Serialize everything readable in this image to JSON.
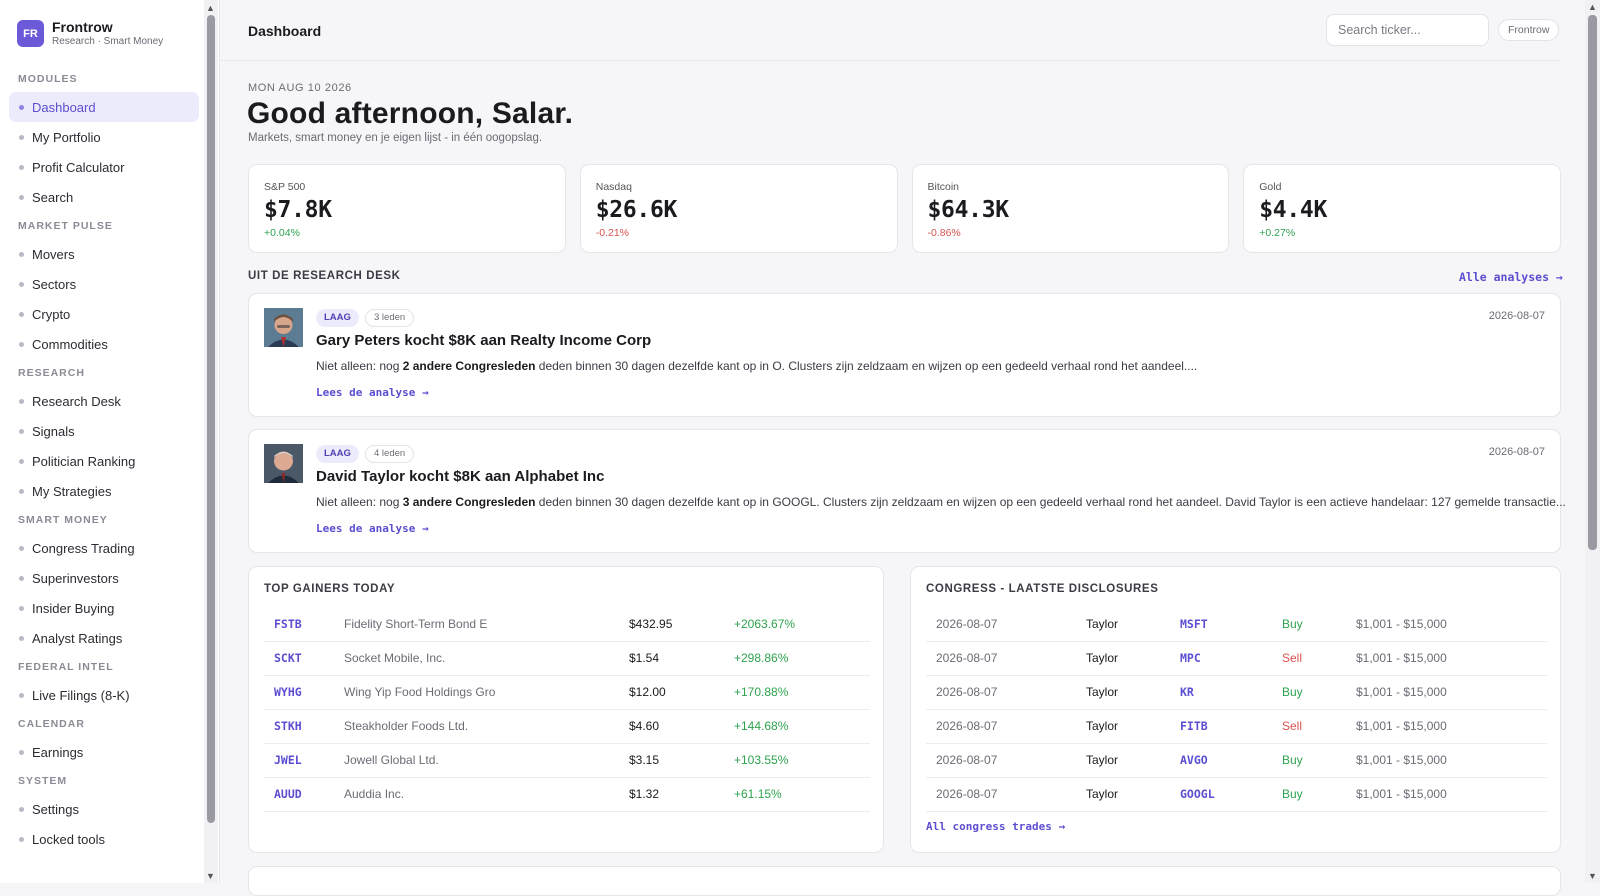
{
  "brand": {
    "logo": "FR",
    "name": "Frontrow",
    "sub": "Research · Smart Money"
  },
  "sidebar": {
    "sections": [
      {
        "title": "MODULES",
        "items": [
          "Dashboard",
          "My Portfolio",
          "Profit Calculator",
          "Search"
        ]
      },
      {
        "title": "MARKET PULSE",
        "items": [
          "Movers",
          "Sectors",
          "Crypto",
          "Commodities"
        ]
      },
      {
        "title": "RESEARCH",
        "items": [
          "Research Desk",
          "Signals",
          "Politician Ranking",
          "My Strategies"
        ]
      },
      {
        "title": "SMART MONEY",
        "items": [
          "Congress Trading",
          "Superinvestors",
          "Insider Buying",
          "Analyst Ratings"
        ]
      },
      {
        "title": "FEDERAL INTEL",
        "items": [
          "Live Filings (8-K)"
        ]
      },
      {
        "title": "CALENDAR",
        "items": [
          "Earnings"
        ]
      },
      {
        "title": "SYSTEM",
        "items": [
          "Settings",
          "Locked tools"
        ]
      }
    ],
    "active": "Dashboard"
  },
  "header": {
    "title": "Dashboard",
    "search_placeholder": "Search ticker...",
    "pill": "Frontrow"
  },
  "hero": {
    "date": "MON AUG 10 2026",
    "greeting": "Good afternoon, Salar.",
    "subtitle": "Markets, smart money en je eigen lijst - in één oogopslag."
  },
  "markets": [
    {
      "label": "S&P 500",
      "value": "$7.8K",
      "change": "+0.04%",
      "dir": "pos"
    },
    {
      "label": "Nasdaq",
      "value": "$26.6K",
      "change": "-0.21%",
      "dir": "neg"
    },
    {
      "label": "Bitcoin",
      "value": "$64.3K",
      "change": "-0.86%",
      "dir": "neg"
    },
    {
      "label": "Gold",
      "value": "$4.4K",
      "change": "+0.27%",
      "dir": "pos"
    }
  ],
  "research": {
    "heading": "UIT DE RESEARCH DESK",
    "all_link": "Alle analyses →",
    "articles": [
      {
        "level": "LAAG",
        "members": "3 leden",
        "date": "2026-08-07",
        "title": "Gary Peters kocht $8K aan Realty Income Corp",
        "body_pre": "Niet alleen: nog ",
        "body_bold": "2 andere Congresleden",
        "body_post": " deden binnen 30 dagen dezelfde kant op in O. Clusters zijn zeldzaam en wijzen op een gedeeld verhaal rond het aandeel....",
        "link": "Lees de analyse →"
      },
      {
        "level": "LAAG",
        "members": "4 leden",
        "date": "2026-08-07",
        "title": "David Taylor kocht $8K aan Alphabet Inc",
        "body_pre": "Niet alleen: nog ",
        "body_bold": "3 andere Congresleden",
        "body_post": " deden binnen 30 dagen dezelfde kant op in GOOGL. Clusters zijn zeldzaam en wijzen op een gedeeld verhaal rond het aandeel. David Taylor is een actieve handelaar: 127 gemelde transactie...",
        "link": "Lees de analyse →"
      }
    ]
  },
  "gainers": {
    "title": "TOP GAINERS TODAY",
    "rows": [
      {
        "ticker": "FSTB",
        "name": "Fidelity Short-Term Bond E",
        "price": "$432.95",
        "change": "+2063.67%"
      },
      {
        "ticker": "SCKT",
        "name": "Socket Mobile, Inc.",
        "price": "$1.54",
        "change": "+298.86%"
      },
      {
        "ticker": "WYHG",
        "name": "Wing Yip Food Holdings Gro",
        "price": "$12.00",
        "change": "+170.88%"
      },
      {
        "ticker": "STKH",
        "name": "Steakholder Foods Ltd.",
        "price": "$4.60",
        "change": "+144.68%"
      },
      {
        "ticker": "JWEL",
        "name": "Jowell Global Ltd.",
        "price": "$3.15",
        "change": "+103.55%"
      },
      {
        "ticker": "AUUD",
        "name": "Auddia Inc.",
        "price": "$1.32",
        "change": "+61.15%"
      }
    ]
  },
  "congress": {
    "title": "CONGRESS - LAATSTE DISCLOSURES",
    "link": "All congress trades →",
    "rows": [
      {
        "date": "2026-08-07",
        "member": "Taylor",
        "ticker": "MSFT",
        "side": "Buy",
        "range": "$1,001 - $15,000"
      },
      {
        "date": "2026-08-07",
        "member": "Taylor",
        "ticker": "MPC",
        "side": "Sell",
        "range": "$1,001 - $15,000"
      },
      {
        "date": "2026-08-07",
        "member": "Taylor",
        "ticker": "KR",
        "side": "Buy",
        "range": "$1,001 - $15,000"
      },
      {
        "date": "2026-08-07",
        "member": "Taylor",
        "ticker": "FITB",
        "side": "Sell",
        "range": "$1,001 - $15,000"
      },
      {
        "date": "2026-08-07",
        "member": "Taylor",
        "ticker": "AVGO",
        "side": "Buy",
        "range": "$1,001 - $15,000"
      },
      {
        "date": "2026-08-07",
        "member": "Taylor",
        "ticker": "GOOGL",
        "side": "Buy",
        "range": "$1,001 - $15,000"
      }
    ]
  },
  "colors": {
    "accent": "#5b4ed1",
    "positive": "#2ea34f",
    "negative": "#d9534f"
  }
}
